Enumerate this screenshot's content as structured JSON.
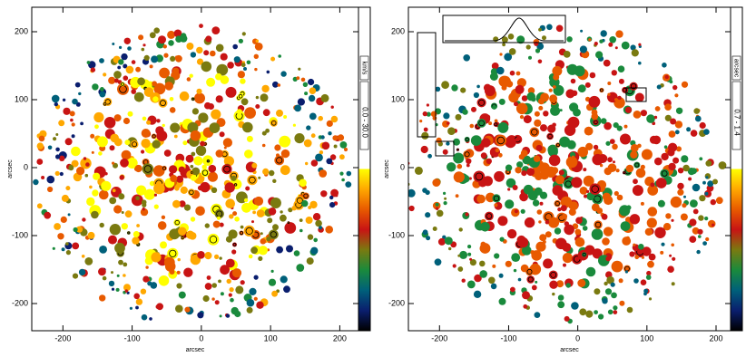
{
  "chart_data": [
    {
      "type": "image",
      "xlabel": "arcsec",
      "ylabel": "arcsec",
      "xlim": [
        -245,
        227
      ],
      "ylim": [
        -240,
        236
      ],
      "xticks": [
        -200,
        -100,
        0,
        100,
        200
      ],
      "yticks": [
        -200,
        -100,
        0,
        100,
        200
      ],
      "colorbar": {
        "label": "0.0 - 30.0",
        "unit": "km/s",
        "colors": [
          "#000000",
          "#0a1e6e",
          "#00607a",
          "#1a8a3c",
          "#7a7a10",
          "#c81414",
          "#e85a00",
          "#ffa800",
          "#ffff00"
        ]
      }
    },
    {
      "type": "image",
      "xlabel": "arcsec",
      "ylabel": "arcsec",
      "xlim": [
        -245,
        221
      ],
      "ylim": [
        -240,
        236
      ],
      "xticks": [
        -200,
        -100,
        0,
        100,
        200
      ],
      "yticks": [
        -200,
        -100,
        0,
        100,
        200
      ],
      "colorbar": {
        "label": "0.7 - 1.4",
        "unit": "arcsec",
        "colors": [
          "#000000",
          "#0a1e6e",
          "#00607a",
          "#1a8a3c",
          "#7a7a10",
          "#c81414",
          "#e85a00",
          "#ffa800",
          "#ffff00"
        ]
      }
    }
  ]
}
